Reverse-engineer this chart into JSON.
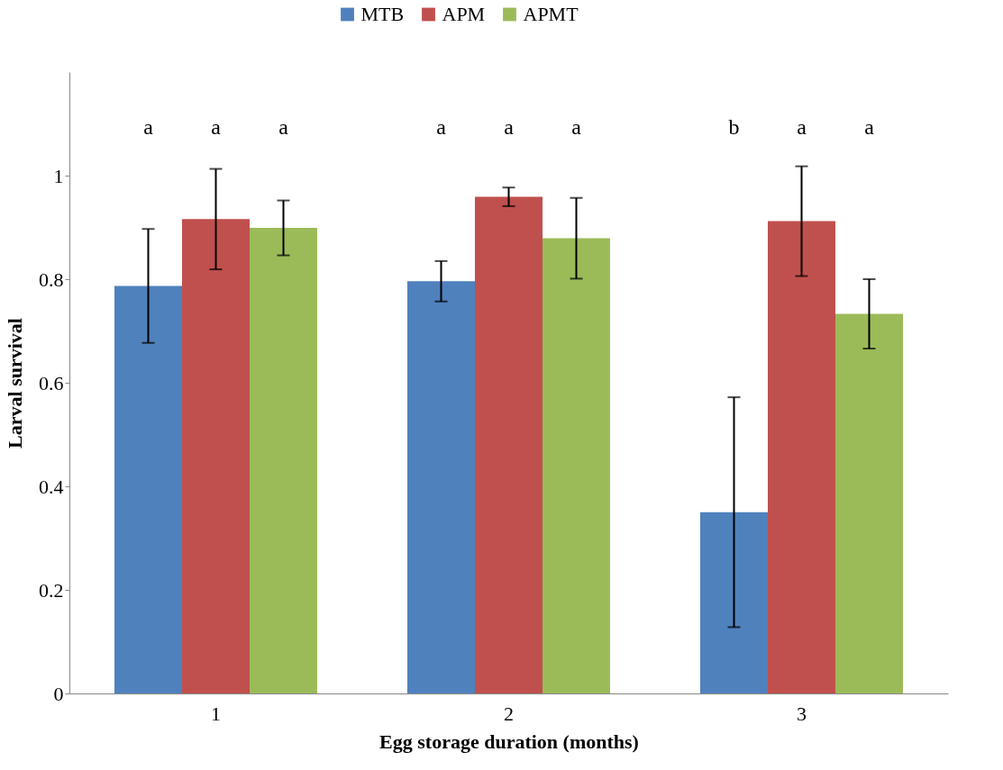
{
  "chart_data": {
    "type": "bar",
    "xlabel": "Egg storage duration (months)",
    "ylabel": "Larval survival",
    "categories": [
      "1",
      "2",
      "3"
    ],
    "series": [
      {
        "name": "MTB",
        "color": "#4f81bd",
        "values": [
          0.787,
          0.796,
          0.35
        ],
        "errors": [
          0.11,
          0.039,
          0.222
        ]
      },
      {
        "name": "APM",
        "color": "#c0504d",
        "values": [
          0.916,
          0.959,
          0.912
        ],
        "errors": [
          0.097,
          0.018,
          0.106
        ]
      },
      {
        "name": "APMT",
        "color": "#9bbb59",
        "values": [
          0.899,
          0.879,
          0.733
        ],
        "errors": [
          0.053,
          0.078,
          0.067
        ]
      }
    ],
    "ylim": [
      0,
      1.2
    ],
    "yticks": [
      0,
      0.2,
      0.4,
      0.6,
      0.8,
      1
    ],
    "grid": false,
    "legend": "top",
    "annotations": [
      "a",
      "a",
      "a",
      "a",
      "a",
      "a",
      "b",
      "a",
      "a"
    ]
  }
}
